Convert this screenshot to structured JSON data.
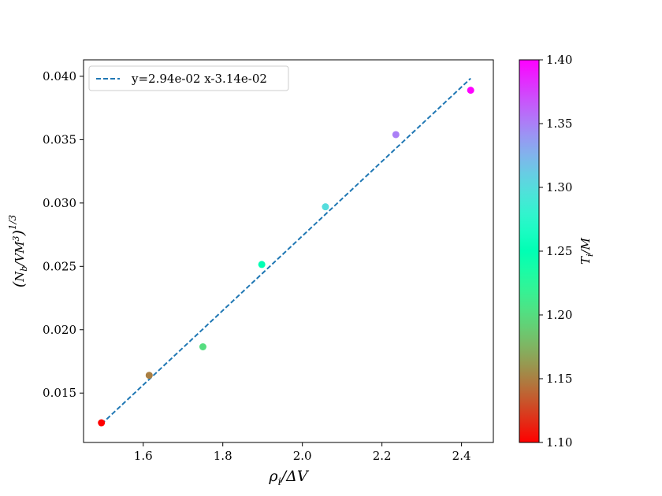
{
  "chart_data": {
    "type": "scatter",
    "x": [
      1.495,
      1.615,
      1.75,
      1.898,
      2.058,
      2.235,
      2.423
    ],
    "y": [
      0.01265,
      0.0164,
      0.01865,
      0.02515,
      0.0297,
      0.0354,
      0.0389
    ],
    "color_values": [
      1.1,
      1.15,
      1.2,
      1.25,
      1.3,
      1.35,
      1.4
    ],
    "fit": {
      "slope": 0.0294,
      "intercept": -0.0314,
      "x_range": [
        1.495,
        2.423
      ]
    },
    "legend": [
      "y=2.94e-02 x-3.14e-02"
    ],
    "legend_position": "top-left",
    "xlim": [
      1.45,
      2.48
    ],
    "ylim": [
      0.0111,
      0.0413
    ],
    "xticks": [
      1.6,
      1.8,
      2.0,
      2.2,
      2.4
    ],
    "xtick_labels": [
      "1.6",
      "1.8",
      "2.0",
      "2.2",
      "2.4"
    ],
    "yticks": [
      0.015,
      0.02,
      0.025,
      0.03,
      0.035,
      0.04
    ],
    "ytick_labels": [
      "0.015",
      "0.020",
      "0.025",
      "0.030",
      "0.035",
      "0.040"
    ],
    "xlabel": "ρ_i/ΔV",
    "ylabel": "(N_b/VM³)^{1/3}",
    "colorbar": {
      "label": "T_i/M",
      "range": [
        1.1,
        1.4
      ],
      "ticks": [
        1.1,
        1.15,
        1.2,
        1.25,
        1.3,
        1.35,
        1.4
      ],
      "tick_labels": [
        "1.10",
        "1.15",
        "1.20",
        "1.25",
        "1.30",
        "1.35",
        "1.40"
      ],
      "colormap": "rainbow"
    },
    "line_color": "#1f77b4",
    "grid": false
  }
}
